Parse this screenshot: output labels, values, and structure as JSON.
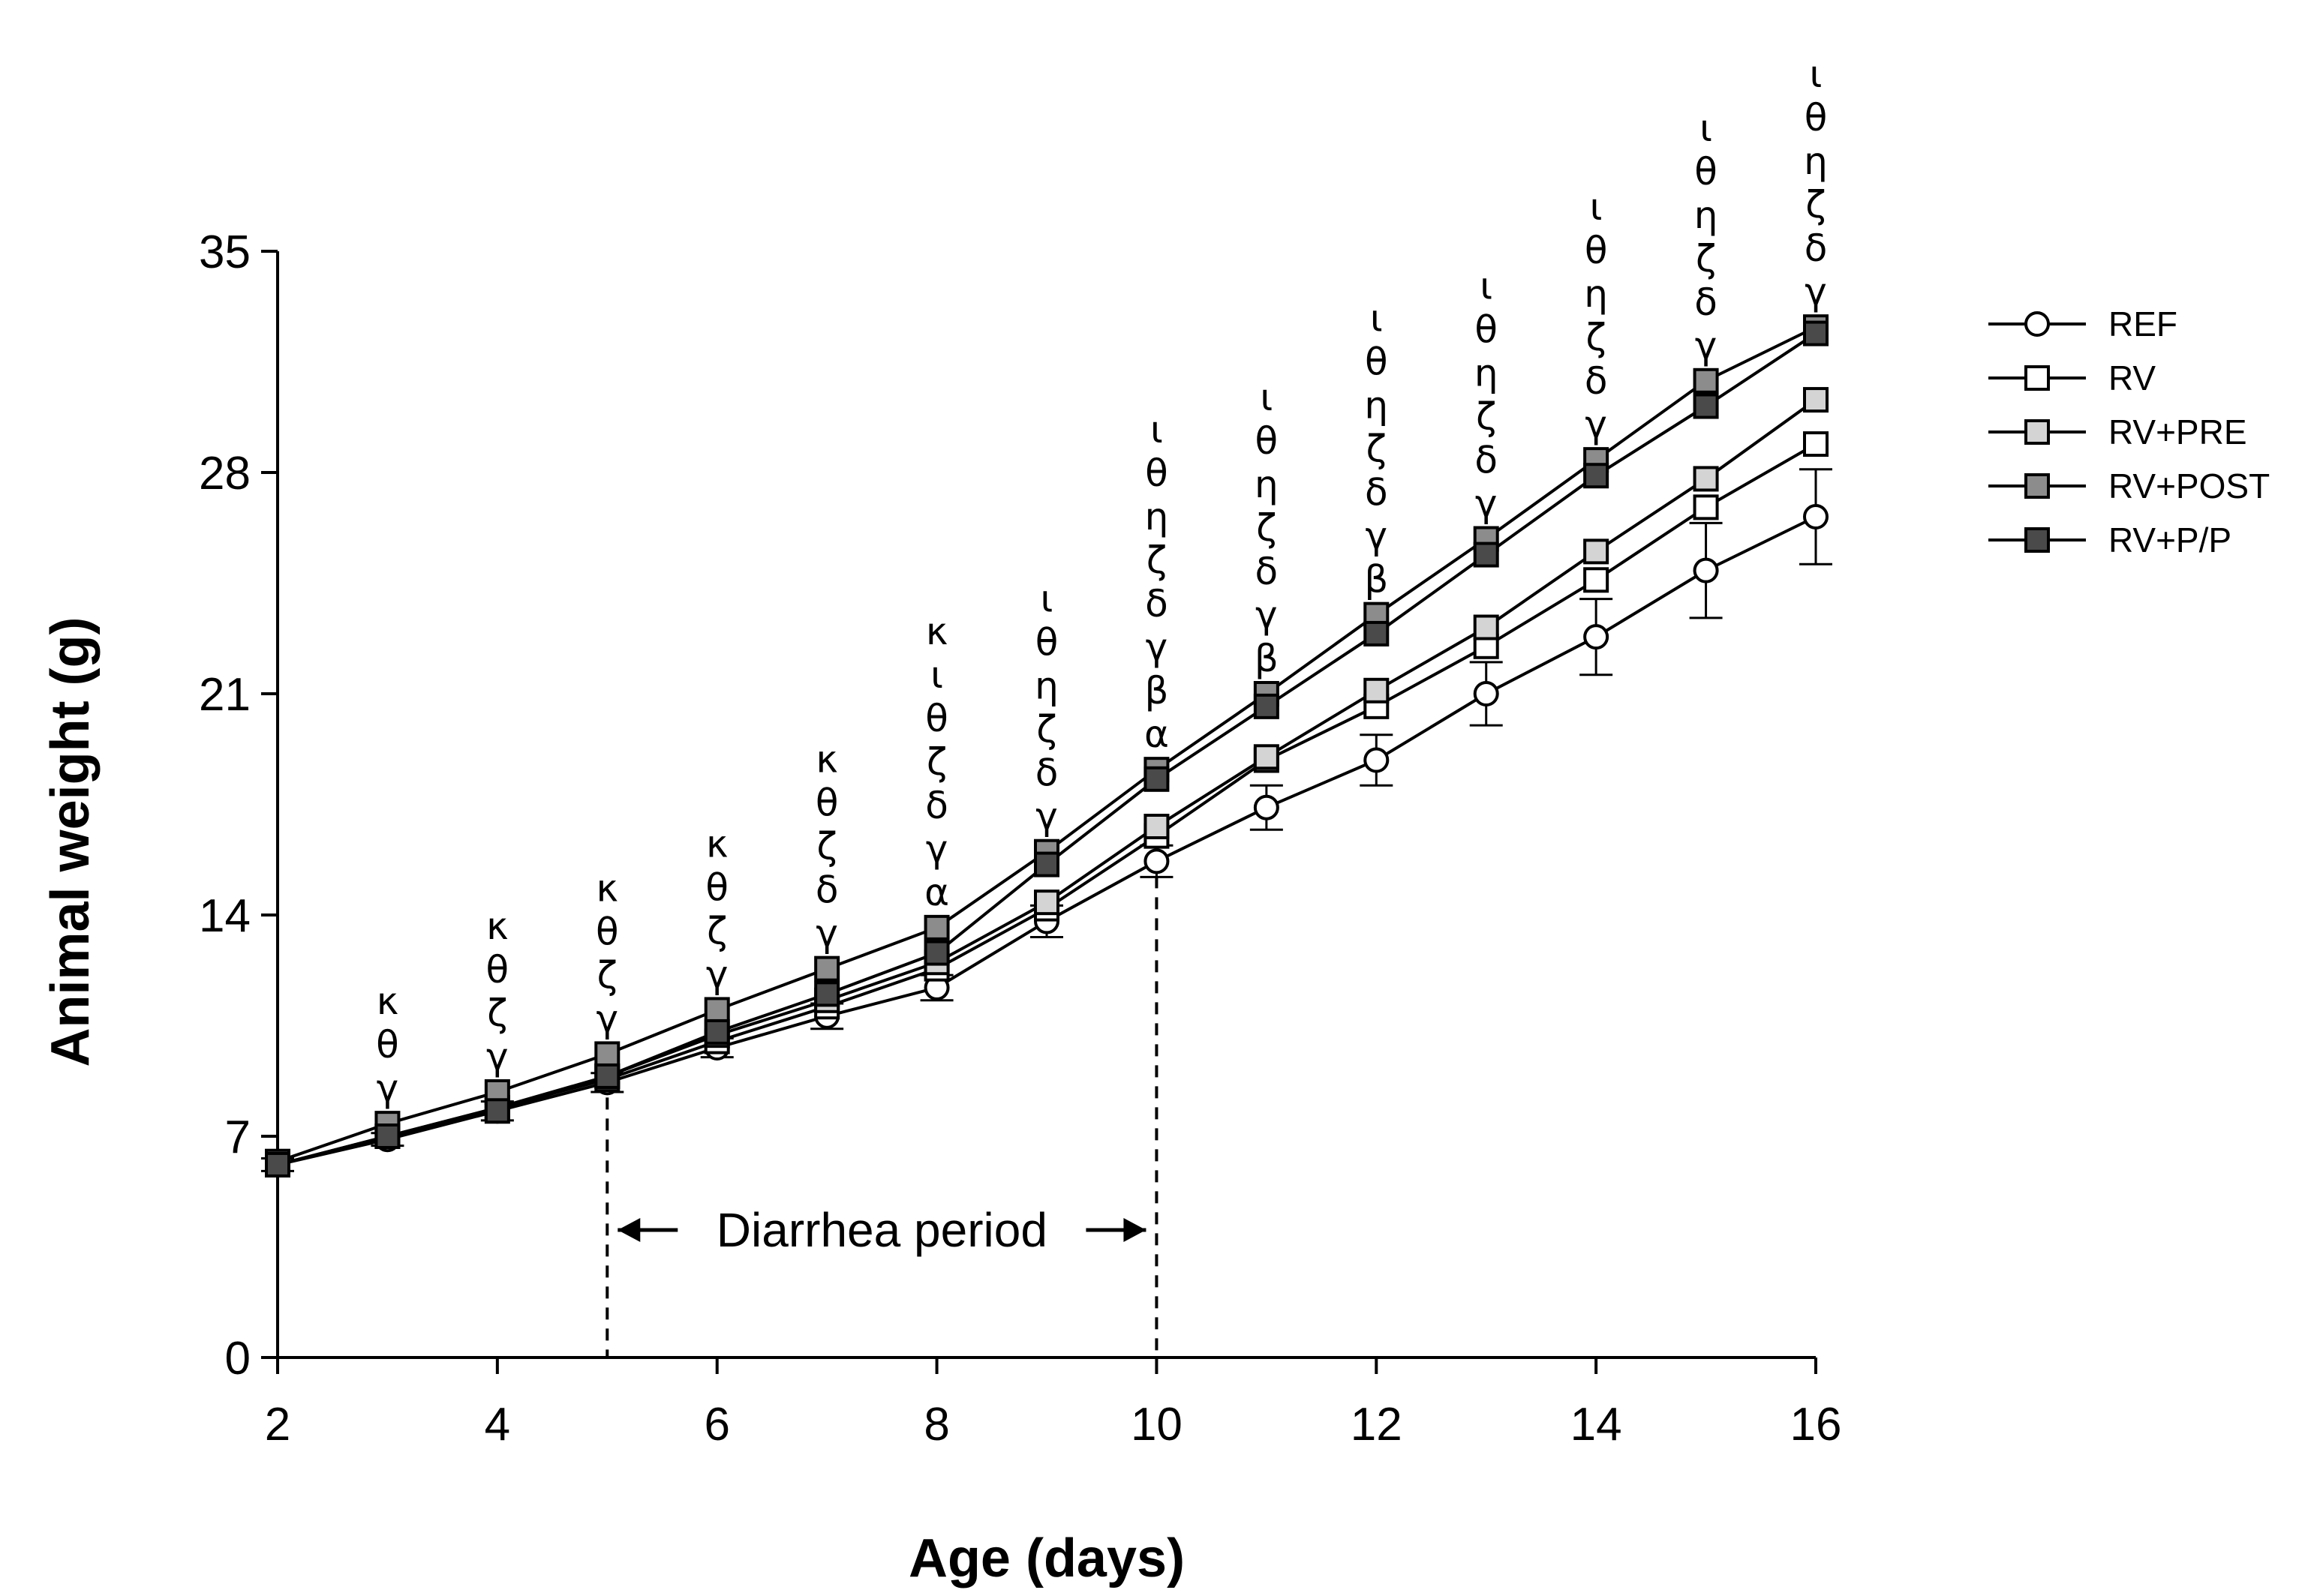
{
  "chart_data": {
    "type": "line",
    "title": "",
    "xlabel": "Age (days)",
    "ylabel": "Animal weight (g)",
    "xlim": [
      2,
      16
    ],
    "ylim": [
      0,
      35
    ],
    "xticks": [
      2,
      4,
      6,
      8,
      10,
      12,
      14,
      16
    ],
    "yticks": [
      0,
      7,
      14,
      21,
      28,
      35
    ],
    "grid": false,
    "legend_position": "right",
    "x": [
      2,
      3,
      4,
      5,
      6,
      7,
      8,
      9,
      10,
      11,
      12,
      13,
      14,
      15,
      16
    ],
    "series": [
      {
        "name": "REF",
        "marker": "circle",
        "fill": "#ffffff",
        "values": [
          6.1,
          6.9,
          7.8,
          8.7,
          9.8,
          10.8,
          11.7,
          13.8,
          15.7,
          17.4,
          18.9,
          21.0,
          22.8,
          24.9,
          26.6
        ],
        "errors": [
          0.2,
          0.2,
          0.3,
          0.3,
          0.3,
          0.4,
          0.4,
          0.5,
          0.5,
          0.7,
          0.8,
          1.0,
          1.2,
          1.5,
          1.5
        ]
      },
      {
        "name": "RV",
        "marker": "square",
        "fill": "#ffffff",
        "values": [
          6.1,
          7.0,
          7.9,
          8.8,
          10.0,
          11.1,
          12.3,
          14.2,
          16.5,
          18.9,
          20.6,
          22.5,
          24.6,
          26.9,
          28.9
        ]
      },
      {
        "name": "RV+PRE",
        "marker": "square",
        "fill": "#d4d4d4",
        "values": [
          6.1,
          7.0,
          7.9,
          8.9,
          10.2,
          11.3,
          12.5,
          14.4,
          16.8,
          19.0,
          21.1,
          23.1,
          25.5,
          27.8,
          30.3
        ]
      },
      {
        "name": "RV+POST",
        "marker": "square",
        "fill": "#8c8c8c",
        "values": [
          6.2,
          7.4,
          8.4,
          9.6,
          11.0,
          12.3,
          13.6,
          16.0,
          18.6,
          21.0,
          23.5,
          25.9,
          28.4,
          30.9,
          32.6
        ]
      },
      {
        "name": "RV+P/P",
        "marker": "square",
        "fill": "#4a4a4a",
        "values": [
          6.1,
          7.0,
          7.8,
          8.9,
          10.3,
          11.5,
          12.8,
          15.6,
          18.3,
          20.6,
          22.9,
          25.4,
          27.9,
          30.1,
          32.4
        ]
      }
    ],
    "significance_annotations": [
      {
        "x": 3,
        "letters": [
          "κ",
          "θ",
          "γ"
        ]
      },
      {
        "x": 4,
        "letters": [
          "κ",
          "θ",
          "ζ",
          "γ"
        ]
      },
      {
        "x": 5,
        "letters": [
          "κ",
          "θ",
          "ζ",
          "γ"
        ]
      },
      {
        "x": 6,
        "letters": [
          "κ",
          "θ",
          "ζ",
          "γ"
        ]
      },
      {
        "x": 7,
        "letters": [
          "κ",
          "θ",
          "ζ",
          "δ",
          "γ"
        ]
      },
      {
        "x": 8,
        "letters": [
          "κ",
          "ι",
          "θ",
          "ζ",
          "δ",
          "γ",
          "α"
        ]
      },
      {
        "x": 9,
        "letters": [
          "ι",
          "θ",
          "η",
          "ζ",
          "δ",
          "γ"
        ]
      },
      {
        "x": 10,
        "letters": [
          "ι",
          "θ",
          "η",
          "ζ",
          "δ",
          "γ",
          "β",
          "α"
        ]
      },
      {
        "x": 11,
        "letters": [
          "ι",
          "θ",
          "η",
          "ζ",
          "δ",
          "γ",
          "β"
        ]
      },
      {
        "x": 12,
        "letters": [
          "ι",
          "θ",
          "η",
          "ζ",
          "δ",
          "γ",
          "β"
        ]
      },
      {
        "x": 13,
        "letters": [
          "ι",
          "θ",
          "η",
          "ζ",
          "δ",
          "γ"
        ]
      },
      {
        "x": 14,
        "letters": [
          "ι",
          "θ",
          "η",
          "ζ",
          "δ",
          "γ"
        ]
      },
      {
        "x": 15,
        "letters": [
          "ι",
          "θ",
          "η",
          "ζ",
          "δ",
          "γ"
        ]
      },
      {
        "x": 16,
        "letters": [
          "ι",
          "θ",
          "η",
          "ζ",
          "δ",
          "γ"
        ]
      }
    ],
    "period_annotation": {
      "label": "Diarrhea period",
      "x_start": 5,
      "x_end": 10
    }
  }
}
